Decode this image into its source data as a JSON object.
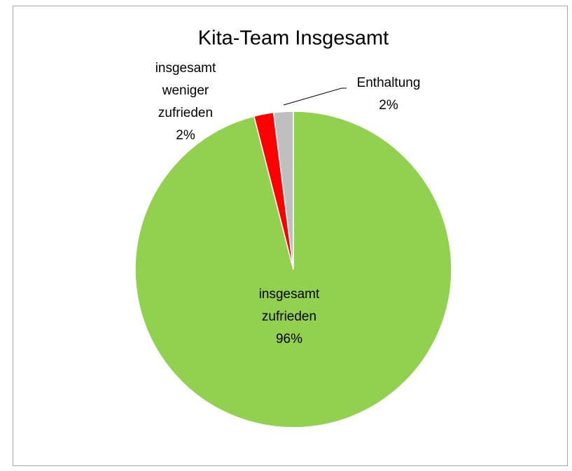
{
  "chart_data": {
    "type": "pie",
    "title": "Kita-Team Insgesamt",
    "categories": [
      "insgesamt zufrieden",
      "insgesamt weniger zufrieden",
      "Enthaltung"
    ],
    "values": [
      96,
      2,
      2
    ],
    "value_labels": [
      "96%",
      "2%",
      "2%"
    ],
    "colors": [
      "#92d050",
      "#ff0000",
      "#bfbfbf"
    ]
  }
}
